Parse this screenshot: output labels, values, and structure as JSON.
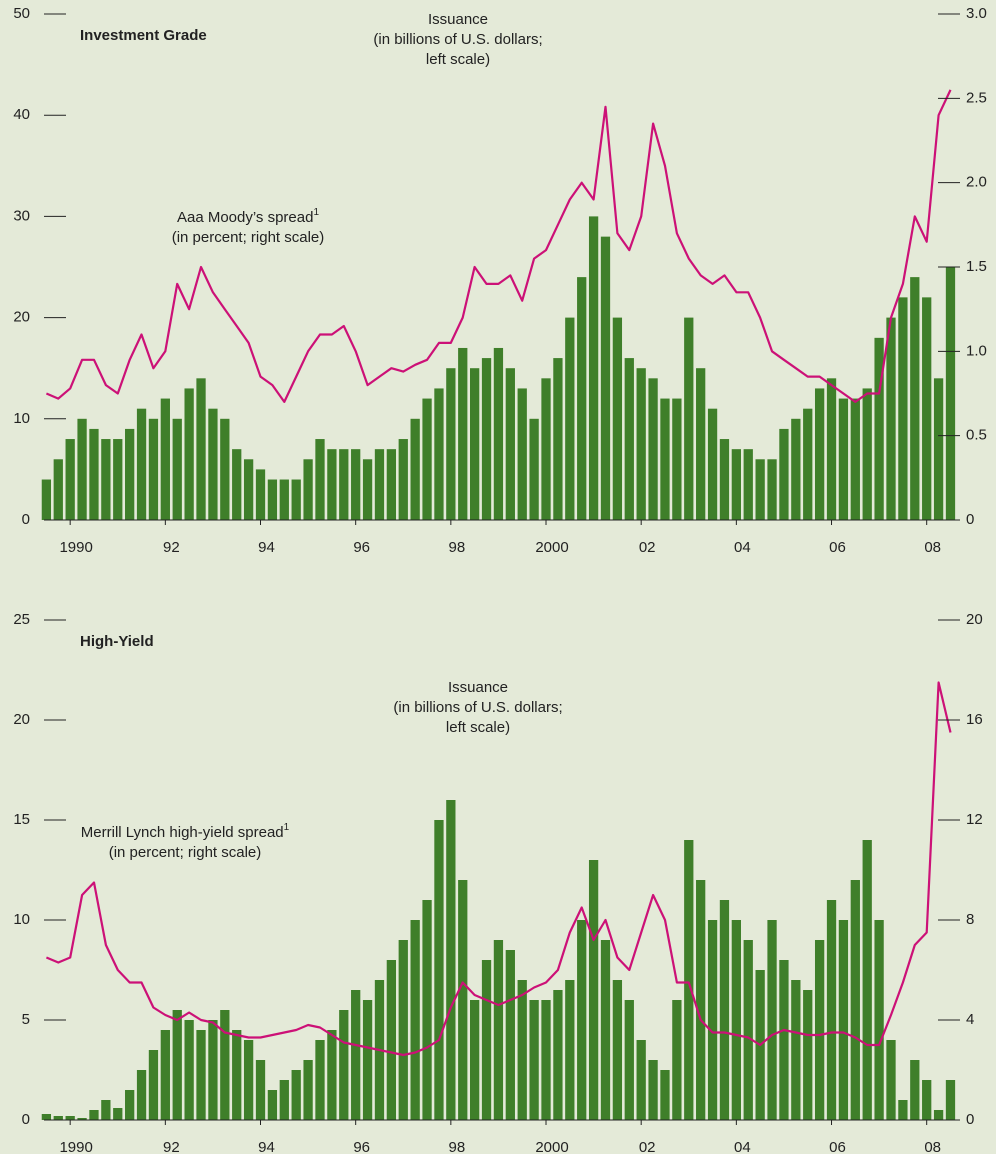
{
  "chart_data": [
    {
      "type": "bar-line",
      "title": "Investment Grade",
      "x": [
        1989.5,
        1989.75,
        1990,
        1990.25,
        1990.5,
        1990.75,
        1991,
        1991.25,
        1991.5,
        1991.75,
        1992,
        1992.25,
        1992.5,
        1992.75,
        1993,
        1993.25,
        1993.5,
        1993.75,
        1994,
        1994.25,
        1994.5,
        1994.75,
        1995,
        1995.25,
        1995.5,
        1995.75,
        1996,
        1996.25,
        1996.5,
        1996.75,
        1997,
        1997.25,
        1997.5,
        1997.75,
        1998,
        1998.25,
        1998.5,
        1998.75,
        1999,
        1999.25,
        1999.5,
        1999.75,
        2000,
        2000.25,
        2000.5,
        2000.75,
        2001,
        2001.25,
        2001.5,
        2001.75,
        2002,
        2002.25,
        2002.5,
        2002.75,
        2003,
        2003.25,
        2003.5,
        2003.75,
        2004,
        2004.25,
        2004.5,
        2004.75,
        2005,
        2005.25,
        2005.5,
        2005.75,
        2006,
        2006.25,
        2006.5,
        2006.75,
        2007,
        2007.25,
        2007.5,
        2007.75,
        2008,
        2008.25,
        2008.5
      ],
      "series": [
        {
          "color": "#3f7f2a",
          "axis": "y",
          "values": [
            4,
            6,
            8,
            10,
            9,
            8,
            8,
            9,
            11,
            10,
            12,
            10,
            13,
            14,
            11,
            10,
            7,
            6,
            5,
            4,
            4,
            4,
            6,
            8,
            7,
            7,
            7,
            6,
            7,
            7,
            8,
            10,
            12,
            13,
            15,
            17,
            15,
            16,
            17,
            15,
            13,
            10,
            14,
            16,
            20,
            24,
            30,
            28,
            20,
            16,
            15,
            14,
            12,
            12,
            20,
            15,
            11,
            8,
            7,
            7,
            6,
            6,
            9,
            10,
            11,
            13,
            14,
            12,
            12,
            13,
            18,
            20,
            22,
            24,
            22,
            14,
            25
          ]
        },
        {
          "color": "#cc1177",
          "axis": "y2",
          "values": [
            0.75,
            0.72,
            0.78,
            0.95,
            0.95,
            0.8,
            0.75,
            0.95,
            1.1,
            0.9,
            1.0,
            1.4,
            1.25,
            1.5,
            1.35,
            1.25,
            1.15,
            1.05,
            0.85,
            0.8,
            0.7,
            0.85,
            1.0,
            1.1,
            1.1,
            1.15,
            1.0,
            0.8,
            0.85,
            0.9,
            0.88,
            0.92,
            0.95,
            1.05,
            1.05,
            1.2,
            1.5,
            1.4,
            1.4,
            1.45,
            1.3,
            1.55,
            1.6,
            1.75,
            1.9,
            2.0,
            1.9,
            2.45,
            1.7,
            1.6,
            1.8,
            2.35,
            2.1,
            1.7,
            1.55,
            1.45,
            1.4,
            1.45,
            1.35,
            1.35,
            1.2,
            1.0,
            0.95,
            0.9,
            0.85,
            0.85,
            0.8,
            0.75,
            0.7,
            0.75,
            0.75,
            1.2,
            1.4,
            1.8,
            1.65,
            2.4,
            2.55
          ]
        }
      ],
      "annotations": [
        {
          "lines": [
            "Issuance",
            "(in billions of U.S. dollars;",
            "left scale)"
          ]
        },
        {
          "lines": [
            "Aaa Moody’s spread",
            "(in percent; right scale)"
          ],
          "sup": "1"
        }
      ],
      "xlim": [
        1989.45,
        2008.7
      ],
      "xticks": [
        {
          "value": 1990,
          "label": "1990"
        },
        {
          "value": 1992,
          "label": "92"
        },
        {
          "value": 1994,
          "label": "94"
        },
        {
          "value": 1996,
          "label": "96"
        },
        {
          "value": 1998,
          "label": "98"
        },
        {
          "value": 2000,
          "label": "2000"
        },
        {
          "value": 2002,
          "label": "02"
        },
        {
          "value": 2004,
          "label": "04"
        },
        {
          "value": 2006,
          "label": "06"
        },
        {
          "value": 2008,
          "label": "08"
        }
      ],
      "ylim": [
        0,
        50
      ],
      "yticks": [
        0,
        10,
        20,
        30,
        40,
        50
      ],
      "y2lim": [
        0,
        3
      ],
      "y2ticks": [
        0,
        {
          "value": 0.5,
          "label": "0.5"
        },
        {
          "value": 1,
          "label": "1.0"
        },
        {
          "value": 1.5,
          "label": "1.5"
        },
        {
          "value": 2,
          "label": "2.0"
        },
        {
          "value": 2.5,
          "label": "2.5"
        },
        {
          "value": 3,
          "label": "3.0"
        }
      ]
    },
    {
      "type": "bar-line",
      "title": "High-Yield",
      "x": [
        1989.5,
        1989.75,
        1990,
        1990.25,
        1990.5,
        1990.75,
        1991,
        1991.25,
        1991.5,
        1991.75,
        1992,
        1992.25,
        1992.5,
        1992.75,
        1993,
        1993.25,
        1993.5,
        1993.75,
        1994,
        1994.25,
        1994.5,
        1994.75,
        1995,
        1995.25,
        1995.5,
        1995.75,
        1996,
        1996.25,
        1996.5,
        1996.75,
        1997,
        1997.25,
        1997.5,
        1997.75,
        1998,
        1998.25,
        1998.5,
        1998.75,
        1999,
        1999.25,
        1999.5,
        1999.75,
        2000,
        2000.25,
        2000.5,
        2000.75,
        2001,
        2001.25,
        2001.5,
        2001.75,
        2002,
        2002.25,
        2002.5,
        2002.75,
        2003,
        2003.25,
        2003.5,
        2003.75,
        2004,
        2004.25,
        2004.5,
        2004.75,
        2005,
        2005.25,
        2005.5,
        2005.75,
        2006,
        2006.25,
        2006.5,
        2006.75,
        2007,
        2007.25,
        2007.5,
        2007.75,
        2008,
        2008.25,
        2008.5
      ],
      "series": [
        {
          "color": "#3f7f2a",
          "axis": "y",
          "values": [
            0.3,
            0.2,
            0.2,
            0.1,
            0.5,
            1.0,
            0.6,
            1.5,
            2.5,
            3.5,
            4.5,
            5.5,
            5.0,
            4.5,
            5.0,
            5.5,
            4.5,
            4.0,
            3.0,
            1.5,
            2.0,
            2.5,
            3.0,
            4.0,
            4.5,
            5.5,
            6.5,
            6.0,
            7.0,
            8.0,
            9.0,
            10.0,
            11.0,
            15.0,
            16.0,
            12.0,
            6.0,
            8.0,
            9.0,
            8.5,
            7.0,
            6.0,
            6.0,
            6.5,
            7.0,
            10.0,
            13.0,
            9.0,
            7.0,
            6.0,
            4.0,
            3.0,
            2.5,
            6.0,
            14.0,
            12.0,
            10.0,
            11.0,
            10.0,
            9.0,
            7.5,
            10.0,
            8.0,
            7.0,
            6.5,
            9.0,
            11.0,
            10.0,
            12.0,
            14.0,
            10.0,
            4.0,
            1.0,
            3.0,
            2.0,
            0.5,
            2.0
          ]
        },
        {
          "color": "#cc1177",
          "axis": "y2",
          "values": [
            6.5,
            6.3,
            6.5,
            9.0,
            9.5,
            7.0,
            6.0,
            5.5,
            5.5,
            4.5,
            4.2,
            4.0,
            4.3,
            4.0,
            3.9,
            3.5,
            3.4,
            3.3,
            3.3,
            3.4,
            3.5,
            3.6,
            3.8,
            3.7,
            3.4,
            3.1,
            3.0,
            2.9,
            2.8,
            2.7,
            2.6,
            2.7,
            2.9,
            3.2,
            4.5,
            5.5,
            5.0,
            4.8,
            4.6,
            4.8,
            5.0,
            5.3,
            5.5,
            6.0,
            7.5,
            8.5,
            7.2,
            8.0,
            6.5,
            6.0,
            7.5,
            9.0,
            8.0,
            5.5,
            5.5,
            4.0,
            3.5,
            3.5,
            3.4,
            3.3,
            3.0,
            3.4,
            3.6,
            3.5,
            3.4,
            3.4,
            3.5,
            3.5,
            3.3,
            3.0,
            3.0,
            4.2,
            5.5,
            7.0,
            7.5,
            17.5,
            15.5
          ]
        }
      ],
      "annotations": [
        {
          "lines": [
            "Issuance",
            "(in billions of U.S. dollars;",
            "left scale)"
          ]
        },
        {
          "lines": [
            "Merrill Lynch high-yield spread",
            "(in percent; right scale)"
          ],
          "sup": "1"
        }
      ],
      "xlim": [
        1989.45,
        2008.7
      ],
      "xticks": [
        {
          "value": 1990,
          "label": "1990"
        },
        {
          "value": 1992,
          "label": "92"
        },
        {
          "value": 1994,
          "label": "94"
        },
        {
          "value": 1996,
          "label": "96"
        },
        {
          "value": 1998,
          "label": "98"
        },
        {
          "value": 2000,
          "label": "2000"
        },
        {
          "value": 2002,
          "label": "02"
        },
        {
          "value": 2004,
          "label": "04"
        },
        {
          "value": 2006,
          "label": "06"
        },
        {
          "value": 2008,
          "label": "08"
        }
      ],
      "ylim": [
        0,
        25
      ],
      "yticks": [
        0,
        5,
        10,
        15,
        20,
        25
      ],
      "y2lim": [
        0,
        20
      ],
      "y2ticks": [
        0,
        4,
        8,
        12,
        16,
        20
      ]
    }
  ]
}
